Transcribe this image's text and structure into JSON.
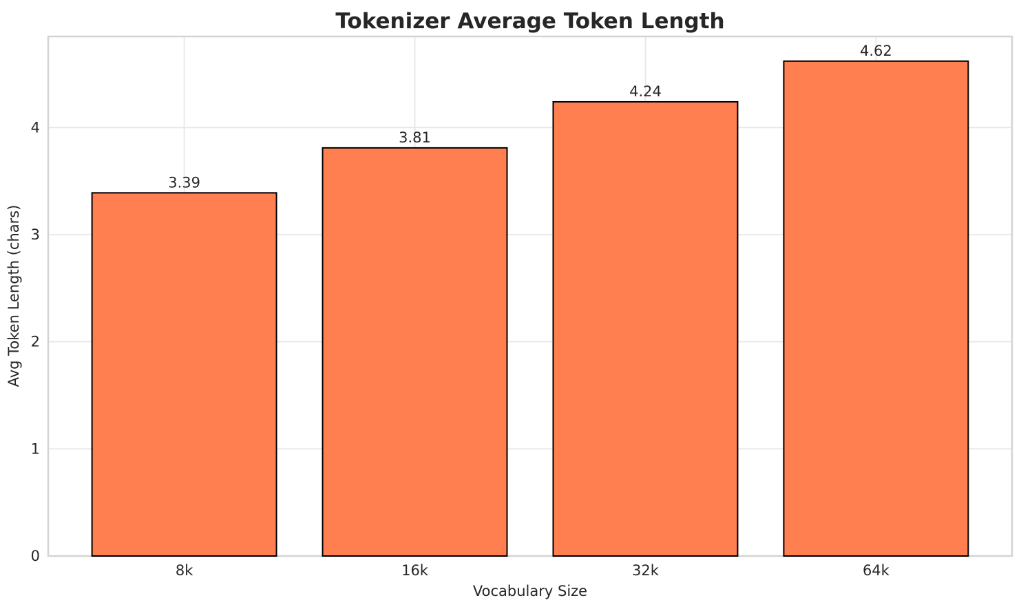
{
  "chart_data": {
    "type": "bar",
    "title": "Tokenizer Average Token Length",
    "xlabel": "Vocabulary Size",
    "ylabel": "Avg Token Length (chars)",
    "categories": [
      "8k",
      "16k",
      "32k",
      "64k"
    ],
    "values": [
      3.39,
      3.81,
      4.24,
      4.62
    ],
    "value_labels": [
      "3.39",
      "3.81",
      "4.24",
      "4.62"
    ],
    "yticks": [
      0,
      1,
      2,
      3,
      4
    ],
    "ytick_labels": [
      "0",
      "1",
      "2",
      "3",
      "4"
    ],
    "ylim": [
      0,
      4.85
    ],
    "grid": true,
    "legend": "none",
    "bar_color": "#FF7F50",
    "bar_edge_color": "#000000",
    "grid_color": "#E7E7E7",
    "spine_color": "#D3D3D3",
    "text_color": "#262626",
    "background_color": "#FFFFFF"
  }
}
